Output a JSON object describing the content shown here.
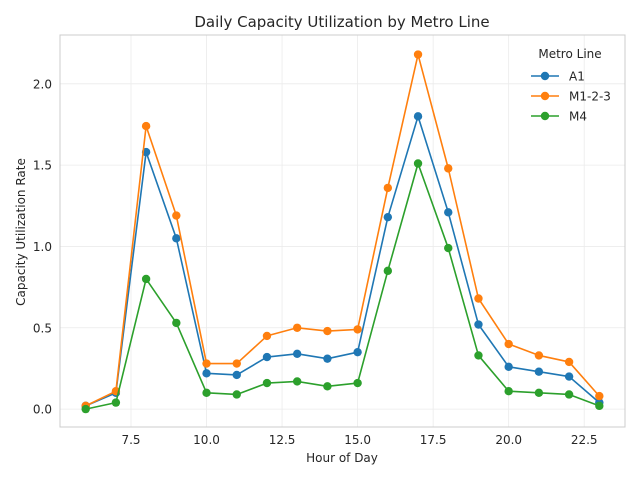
{
  "chart_data": {
    "type": "line",
    "title": "Daily Capacity Utilization by Metro Line",
    "xlabel": "Hour of Day",
    "ylabel": "Capacity Utilization Rate",
    "xlim": [
      5.15,
      23.85
    ],
    "ylim": [
      -0.11,
      2.3
    ],
    "xticks": [
      7.5,
      10.0,
      12.5,
      15.0,
      17.5,
      20.0,
      22.5
    ],
    "xtick_labels": [
      "7.5",
      "10.0",
      "12.5",
      "15.0",
      "17.5",
      "20.0",
      "22.5"
    ],
    "yticks": [
      0.0,
      0.5,
      1.0,
      1.5,
      2.0
    ],
    "ytick_labels": [
      "0.0",
      "0.5",
      "1.0",
      "1.5",
      "2.0"
    ],
    "grid": true,
    "legend": {
      "title": "Metro Line",
      "position": "top-right"
    },
    "x": [
      6,
      7,
      8,
      9,
      10,
      11,
      12,
      13,
      14,
      15,
      16,
      17,
      18,
      19,
      20,
      21,
      22,
      23
    ],
    "series": [
      {
        "name": "A1",
        "color": "#1f77b4",
        "values": [
          0.02,
          0.1,
          1.58,
          1.05,
          0.22,
          0.21,
          0.32,
          0.34,
          0.31,
          0.35,
          1.18,
          1.8,
          1.21,
          0.52,
          0.26,
          0.23,
          0.2,
          0.04
        ]
      },
      {
        "name": "M1-2-3",
        "color": "#ff7f0e",
        "values": [
          0.02,
          0.11,
          1.74,
          1.19,
          0.28,
          0.28,
          0.45,
          0.5,
          0.48,
          0.49,
          1.36,
          2.18,
          1.48,
          0.68,
          0.4,
          0.33,
          0.29,
          0.08
        ]
      },
      {
        "name": "M4",
        "color": "#2ca02c",
        "values": [
          0.0,
          0.04,
          0.8,
          0.53,
          0.1,
          0.09,
          0.16,
          0.17,
          0.14,
          0.16,
          0.85,
          1.51,
          0.99,
          0.33,
          0.11,
          0.1,
          0.09,
          0.02
        ]
      }
    ]
  }
}
